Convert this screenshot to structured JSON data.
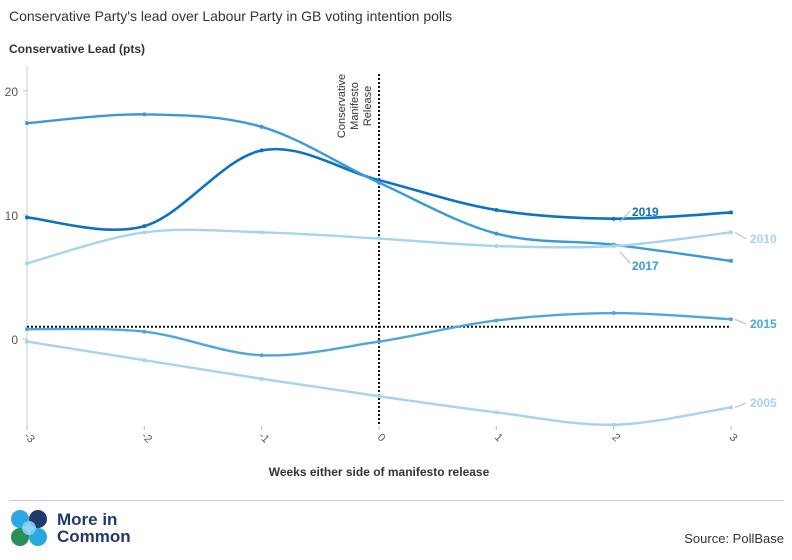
{
  "chart_data": {
    "type": "line",
    "title": "Conservative Party's lead over Labour Party in GB voting intention polls",
    "ylabel": "Conservative Lead (pts)",
    "xlabel": "Weeks either side of manifesto release",
    "x": [
      -3,
      -2,
      -1,
      0,
      1,
      2,
      3
    ],
    "xlim": [
      -3,
      3
    ],
    "ylim": [
      -7,
      22
    ],
    "yticks": [
      0,
      10,
      20
    ],
    "grid": false,
    "reference_line": {
      "y": 1,
      "style": "dotted"
    },
    "annotation": {
      "x": 0,
      "text": "Conservative Manifesto Release"
    },
    "series": [
      {
        "name": "2019",
        "color": "#0b72c4",
        "values": [
          9.8,
          9.1,
          15.2,
          12.8,
          10.4,
          9.7,
          10.2
        ]
      },
      {
        "name": "2017",
        "color": "#3a9ad9",
        "values": [
          17.4,
          18.1,
          17.1,
          12.6,
          8.5,
          7.6,
          6.3
        ]
      },
      {
        "name": "2010",
        "color": "#a6d4f0",
        "values": [
          6.1,
          8.6,
          8.6,
          8.1,
          7.5,
          7.5,
          8.6
        ]
      },
      {
        "name": "2015",
        "color": "#4fa6de",
        "values": [
          0.8,
          0.6,
          -1.3,
          -0.2,
          1.5,
          2.1,
          1.6
        ]
      },
      {
        "name": "2005",
        "color": "#a6d4f0",
        "values": [
          -0.2,
          -1.7,
          -3.2,
          -4.6,
          -5.9,
          -6.9,
          -5.5
        ]
      }
    ]
  },
  "footer": {
    "logo_line1": "More in",
    "logo_line2": "Common",
    "source": "Source: PollBase"
  }
}
